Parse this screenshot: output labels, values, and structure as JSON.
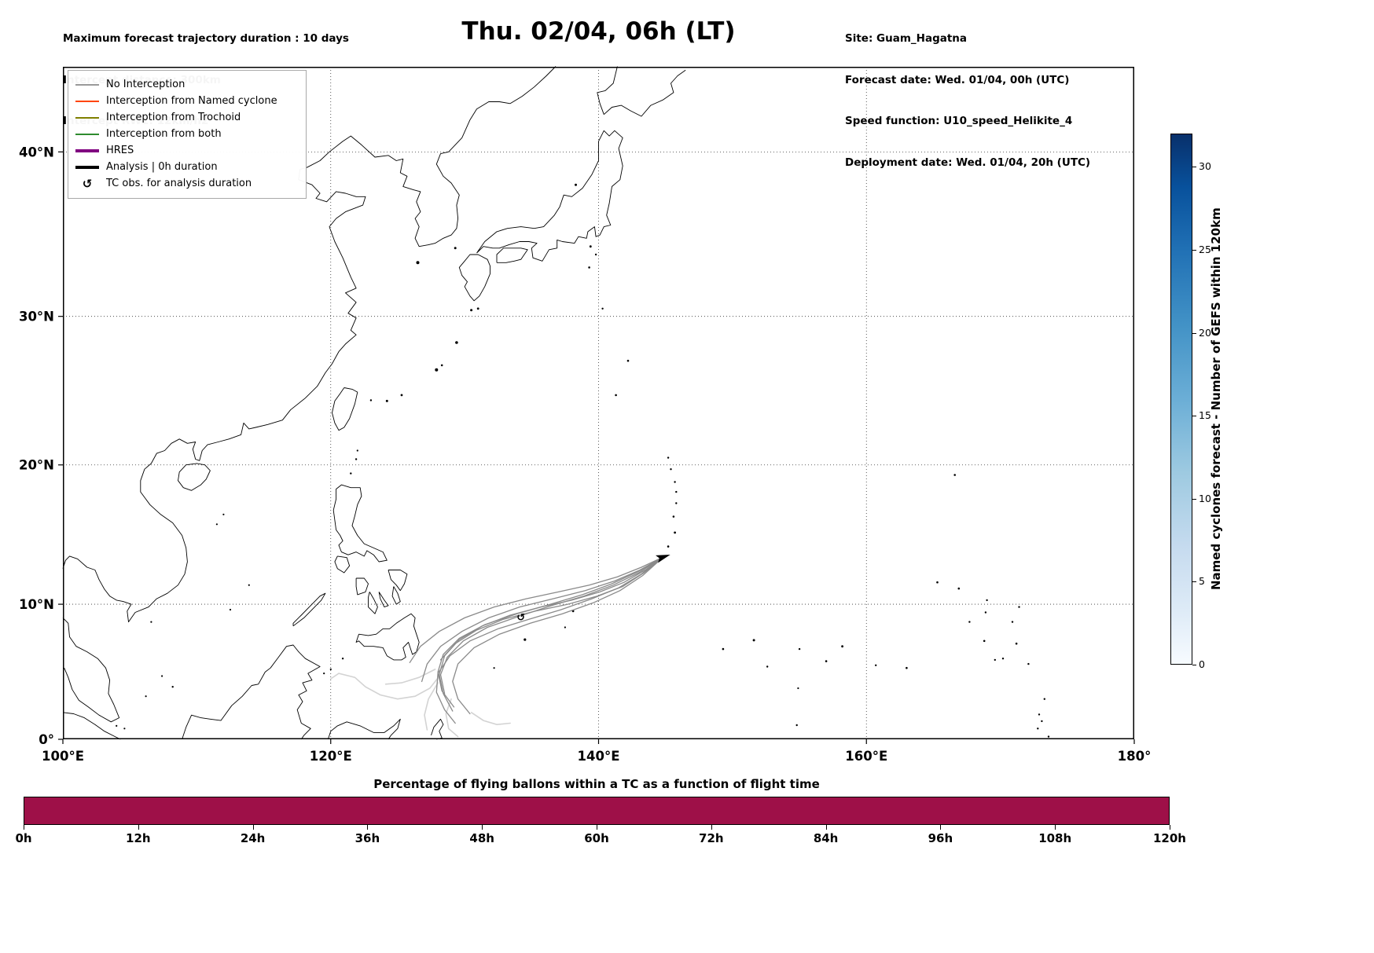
{
  "header": {
    "left": [
      "Maximum forecast trajectory duration : 10 days",
      "Intercept distance: 300km",
      "Intercept RW2: 12km/h2"
    ],
    "title": "Thu. 02/04, 06h (LT)",
    "right": [
      "Site: Guam_Hagatna",
      "Forecast date: Wed. 01/04, 00h (UTC)",
      "Speed function: U10_speed_Helikite_4",
      "Deployment date: Wed. 01/04, 20h (UTC)"
    ]
  },
  "legend": {
    "items": [
      {
        "label": "No Interception",
        "type": "line",
        "color": "#999999",
        "thick": false
      },
      {
        "label": "Interception from Named cyclone",
        "type": "line",
        "color": "#ff4500",
        "thick": false
      },
      {
        "label": "Interception from Trochoid",
        "type": "line",
        "color": "#808000",
        "thick": false
      },
      {
        "label": "Interception from both",
        "type": "line",
        "color": "#2e8b2e",
        "thick": false
      },
      {
        "label": "HRES",
        "type": "line",
        "color": "#800080",
        "thick": true
      },
      {
        "label": "Analysis | 0h duration",
        "type": "line",
        "color": "#000000",
        "thick": true
      },
      {
        "label": "TC obs. for analysis duration",
        "type": "symbol",
        "symbol": "↺",
        "color": "#000000"
      }
    ]
  },
  "chart_data": {
    "type": "map-trajectories",
    "title": "Thu. 02/04, 06h (LT)",
    "map": {
      "projection": "mercator",
      "lon_range": [
        100,
        180
      ],
      "lat_range": [
        0,
        44.7
      ],
      "grid_style": "dotted",
      "x_ticks": [
        {
          "label": "100°E",
          "lon": 100
        },
        {
          "label": "120°E",
          "lon": 120
        },
        {
          "label": "140°E",
          "lon": 140
        },
        {
          "label": "160°E",
          "lon": 160
        },
        {
          "label": "180°",
          "lon": 180
        }
      ],
      "y_ticks": [
        {
          "label": "0°",
          "lat": 0
        },
        {
          "label": "10°N",
          "lat": 10
        },
        {
          "label": "20°N",
          "lat": 20
        },
        {
          "label": "30°N",
          "lat": 30
        },
        {
          "label": "40°N",
          "lat": 40
        }
      ],
      "deployment_site": {
        "name": "Guam_Hagatna",
        "lon": 144.85,
        "lat": 13.45
      },
      "tc_obs_marker": {
        "symbol": "↺",
        "lon": 134.2,
        "lat": 8.8
      },
      "trajectories_no_interception": [
        [
          [
            144.85,
            13.45
          ],
          [
            143.2,
            12.2
          ],
          [
            141.5,
            11.2
          ],
          [
            139.5,
            10.4
          ],
          [
            137.2,
            9.6
          ],
          [
            134.8,
            8.9
          ],
          [
            132.5,
            8.2
          ],
          [
            130.4,
            7.3
          ],
          [
            128.9,
            6.2
          ],
          [
            128.0,
            4.9
          ],
          [
            127.9,
            3.5
          ],
          [
            128.5,
            2.2
          ],
          [
            129.3,
            1.2
          ]
        ],
        [
          [
            144.85,
            13.45
          ],
          [
            143.0,
            12.4
          ],
          [
            141.0,
            11.5
          ],
          [
            138.8,
            10.7
          ],
          [
            136.4,
            10.0
          ],
          [
            133.9,
            9.3
          ],
          [
            131.5,
            8.5
          ],
          [
            129.6,
            7.5
          ],
          [
            128.4,
            6.3
          ],
          [
            128.0,
            5.0
          ],
          [
            128.3,
            3.6
          ],
          [
            129.2,
            2.4
          ]
        ],
        [
          [
            144.85,
            13.45
          ],
          [
            143.3,
            12.1
          ],
          [
            141.6,
            11.0
          ],
          [
            139.6,
            10.1
          ],
          [
            137.3,
            9.3
          ],
          [
            134.9,
            8.6
          ],
          [
            132.6,
            7.8
          ],
          [
            130.7,
            6.8
          ],
          [
            129.5,
            5.6
          ],
          [
            129.1,
            4.3
          ],
          [
            129.5,
            3.0
          ],
          [
            130.4,
            1.9
          ]
        ],
        [
          [
            144.85,
            13.45
          ],
          [
            143.1,
            12.5
          ],
          [
            141.2,
            11.7
          ],
          [
            139.0,
            11.0
          ],
          [
            136.6,
            10.4
          ],
          [
            134.1,
            9.8
          ],
          [
            131.8,
            9.0
          ],
          [
            129.8,
            8.0
          ],
          [
            128.2,
            6.9
          ],
          [
            127.2,
            5.6
          ],
          [
            126.8,
            4.3
          ]
        ],
        [
          [
            144.85,
            13.45
          ],
          [
            143.4,
            12.3
          ],
          [
            141.8,
            11.3
          ],
          [
            139.9,
            10.6
          ],
          [
            137.7,
            10.0
          ],
          [
            135.3,
            9.5
          ],
          [
            132.9,
            8.9
          ],
          [
            130.9,
            8.1
          ],
          [
            129.3,
            7.1
          ],
          [
            128.2,
            5.9
          ]
        ],
        [
          [
            144.85,
            13.45
          ],
          [
            143.2,
            12.7
          ],
          [
            141.4,
            12.0
          ],
          [
            139.3,
            11.4
          ],
          [
            137.0,
            10.9
          ],
          [
            134.6,
            10.4
          ],
          [
            132.2,
            9.8
          ],
          [
            130.0,
            9.0
          ],
          [
            128.1,
            8.0
          ],
          [
            126.7,
            6.9
          ],
          [
            125.9,
            5.7
          ]
        ],
        [
          [
            144.85,
            13.45
          ],
          [
            143.5,
            12.5
          ],
          [
            141.9,
            11.6
          ],
          [
            140.1,
            10.9
          ],
          [
            138.0,
            10.3
          ],
          [
            135.7,
            9.8
          ],
          [
            133.4,
            9.2
          ],
          [
            131.3,
            8.4
          ],
          [
            129.6,
            7.4
          ],
          [
            128.5,
            6.2
          ],
          [
            128.1,
            4.8
          ],
          [
            128.4,
            3.4
          ],
          [
            129.1,
            2.1
          ]
        ],
        [
          [
            144.85,
            13.45
          ],
          [
            143.0,
            12.3
          ],
          [
            141.1,
            11.4
          ],
          [
            138.9,
            10.6
          ],
          [
            136.5,
            9.9
          ],
          [
            134.0,
            9.1
          ],
          [
            131.7,
            8.3
          ],
          [
            129.9,
            7.3
          ],
          [
            128.7,
            6.1
          ],
          [
            128.2,
            4.8
          ],
          [
            128.5,
            3.4
          ]
        ]
      ],
      "trajectories_faded": [
        [
          [
            128.2,
            4.8
          ],
          [
            127.4,
            3.8
          ],
          [
            126.3,
            3.2
          ],
          [
            125.0,
            3.0
          ],
          [
            123.7,
            3.3
          ],
          [
            122.6,
            3.9
          ],
          [
            121.8,
            4.6
          ],
          [
            120.6,
            4.9
          ],
          [
            120.0,
            4.5
          ]
        ],
        [
          [
            129.0,
            3.0
          ],
          [
            128.6,
            1.9
          ],
          [
            128.8,
            0.8
          ],
          [
            129.5,
            0.2
          ]
        ],
        [
          [
            128.0,
            4.2
          ],
          [
            127.3,
            3.0
          ],
          [
            127.0,
            1.8
          ],
          [
            127.2,
            0.7
          ]
        ],
        [
          [
            130.5,
            2.0
          ],
          [
            131.4,
            1.4
          ],
          [
            132.4,
            1.1
          ],
          [
            133.4,
            1.2
          ]
        ],
        [
          [
            127.8,
            5.2
          ],
          [
            126.6,
            4.6
          ],
          [
            125.3,
            4.2
          ],
          [
            124.1,
            4.1
          ]
        ]
      ]
    },
    "colorbar": {
      "label": "Named cyclones forecast - Number of GEFS within 120km",
      "cmap": "Blues",
      "ticks": [
        0,
        5,
        10,
        15,
        20,
        25,
        30
      ],
      "extent": [
        0,
        32
      ]
    },
    "flight_strip": {
      "title": "Percentage of flying ballons within a TC as a function of flight time",
      "x_ticks": [
        "0h",
        "12h",
        "24h",
        "36h",
        "48h",
        "60h",
        "72h",
        "84h",
        "96h",
        "108h",
        "120h"
      ],
      "hours_range": [
        0,
        120
      ],
      "segments": [
        {
          "from_h": 0,
          "to_h": 120,
          "color": "#9e1048"
        }
      ]
    }
  }
}
